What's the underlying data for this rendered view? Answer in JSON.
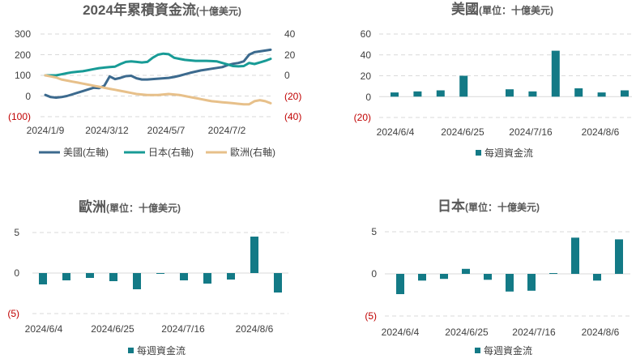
{
  "colors": {
    "us": "#3c6a8e",
    "japan": "#189b96",
    "europe": "#e7c08a",
    "bar": "#137a86",
    "negative": "#c00000"
  },
  "chart_data": [
    {
      "id": "cumulative",
      "type": "line",
      "title_main": "2024年累積資金流",
      "title_sub": "(十億美元)",
      "x_tick_labels": [
        "2024/1/9",
        "2024/3/12",
        "2024/5/7",
        "2024/7/2"
      ],
      "y_left": {
        "ticks": [
          "300",
          "200",
          "100",
          "0",
          "(100)"
        ],
        "ylim": [
          -100,
          300
        ]
      },
      "y_right": {
        "ticks": [
          "40",
          "20",
          "0",
          "(20)",
          "(40)"
        ],
        "ylim": [
          -40,
          40
        ]
      },
      "grid": true,
      "legend_position": "bottom",
      "series": [
        {
          "name": "美國(左軸)",
          "axis": "left",
          "values": [
            5,
            -5,
            -8,
            -5,
            0,
            8,
            16,
            24,
            32,
            40,
            38,
            50,
            95,
            82,
            88,
            96,
            98,
            86,
            80,
            80,
            82,
            84,
            86,
            88,
            92,
            98,
            105,
            112,
            118,
            124,
            128,
            132,
            136,
            140,
            150,
            156,
            160,
            168,
            200,
            212,
            216,
            220,
            224
          ]
        },
        {
          "name": "日本(右軸)",
          "axis": "right",
          "values": [
            0,
            0,
            0,
            1,
            2,
            3,
            3.5,
            4,
            5,
            6,
            7,
            7.5,
            8,
            8.5,
            11,
            13,
            13.5,
            13,
            12.5,
            13,
            17,
            20,
            21,
            20.5,
            17,
            16,
            15,
            14.5,
            14,
            14,
            14,
            13.8,
            13.5,
            12,
            10.5,
            9,
            8.7,
            9,
            12,
            11,
            12.5,
            14,
            16
          ]
        },
        {
          "name": "歐洲(右軸)",
          "axis": "right",
          "values": [
            0,
            -1,
            -2,
            -4,
            -5,
            -6,
            -7,
            -8,
            -9,
            -10,
            -11,
            -12,
            -13,
            -14,
            -15,
            -16,
            -17,
            -18,
            -18.5,
            -19,
            -19,
            -19,
            -18.5,
            -18,
            -18.5,
            -19,
            -20,
            -21,
            -22,
            -23,
            -24,
            -25,
            -25.5,
            -26,
            -26.5,
            -27,
            -27.5,
            -28,
            -28,
            -25,
            -24,
            -25,
            -27
          ]
        }
      ]
    },
    {
      "id": "us",
      "type": "bar",
      "title_main": "美國",
      "title_sub": "(單位：十億美元)",
      "x_tick_labels": [
        "2024/6/4",
        "2024/6/25",
        "2024/7/16",
        "2024/8/6"
      ],
      "y_ticks": [
        "60",
        "40",
        "20",
        "0",
        "(20)"
      ],
      "ylim": [
        -20,
        60
      ],
      "grid": true,
      "legend": "每週資金流",
      "legend_position": "bottom",
      "values": [
        4,
        5,
        6,
        20,
        0,
        7,
        5,
        44,
        8,
        4,
        6
      ]
    },
    {
      "id": "europe",
      "type": "bar",
      "title_main": "歐洲",
      "title_sub": "(單位：十億美元)",
      "x_tick_labels": [
        "2024/6/4",
        "2024/6/25",
        "2024/7/16",
        "2024/8/6"
      ],
      "y_ticks": [
        "5",
        "0",
        "(5)"
      ],
      "ylim": [
        -5,
        5
      ],
      "grid": true,
      "legend": "每週資金流",
      "legend_position": "bottom",
      "values": [
        -1.4,
        -0.9,
        -0.6,
        -1.0,
        -2.0,
        -0.1,
        -0.9,
        -1.3,
        -0.8,
        4.5,
        -2.4
      ]
    },
    {
      "id": "japan",
      "type": "bar",
      "title_main": "日本",
      "title_sub": "(單位：十億美元)",
      "x_tick_labels": [
        "2024/6/4",
        "2024/6/25",
        "2024/7/16",
        "2024/8/6"
      ],
      "y_ticks": [
        "5",
        "0",
        "(5)"
      ],
      "ylim": [
        -5,
        5
      ],
      "grid": true,
      "legend": "每週資金流",
      "legend_position": "bottom",
      "values": [
        -2.4,
        -0.8,
        -0.6,
        0.6,
        -0.7,
        -2.1,
        -2.0,
        0.1,
        4.3,
        -0.8,
        4.1
      ]
    }
  ]
}
